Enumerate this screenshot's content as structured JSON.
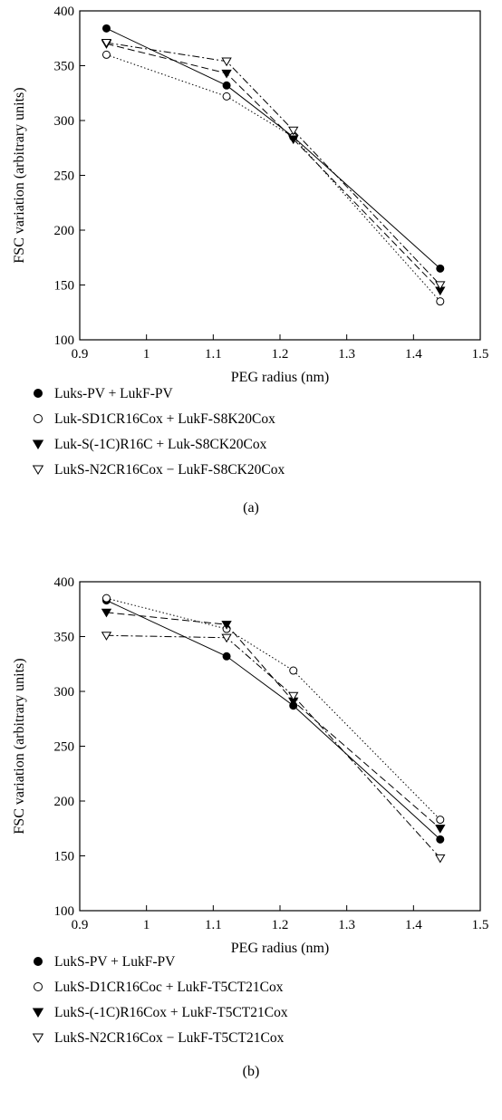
{
  "chart_data": [
    {
      "type": "line",
      "panel_label": "(a)",
      "xlabel": "PEG radius (nm)",
      "ylabel": "FSC variation (arbitrary units)",
      "xlim": [
        0.9,
        1.5
      ],
      "ylim": [
        100,
        400
      ],
      "xticks": [
        "0.9",
        "1",
        "1.1",
        "1.2",
        "1.3",
        "1.4",
        "1.5"
      ],
      "yticks": [
        "100",
        "150",
        "200",
        "250",
        "300",
        "350",
        "400"
      ],
      "x": [
        0.94,
        1.12,
        1.22,
        1.44
      ],
      "grid": false,
      "legend_position": "below",
      "series": [
        {
          "name": "Luks-PV + LukF-PV",
          "marker": "filled-circle",
          "line": "solid",
          "values": [
            384,
            332,
            285,
            165
          ]
        },
        {
          "name": "Luk-SD1CR16Cox + LukF-S8K20Cox",
          "marker": "open-circle",
          "line": "dotted",
          "values": [
            360,
            322,
            285,
            135
          ]
        },
        {
          "name": "Luk-S(-1C)R16C + Luk-S8CK20Cox",
          "marker": "filled-triangle-down",
          "line": "dashed",
          "values": [
            370,
            343,
            283,
            145
          ]
        },
        {
          "name": "LukS-N2CR16Cox − LukF-S8CK20Cox",
          "marker": "open-triangle-down",
          "line": "dash-dot",
          "values": [
            371,
            354,
            291,
            150
          ]
        }
      ]
    },
    {
      "type": "line",
      "panel_label": "(b)",
      "xlabel": "PEG radius (nm)",
      "ylabel": "FSC variation (arbitrary units)",
      "xlim": [
        0.9,
        1.5
      ],
      "ylim": [
        100,
        400
      ],
      "xticks": [
        "0.9",
        "1",
        "1.1",
        "1.2",
        "1.3",
        "1.4",
        "1.5"
      ],
      "yticks": [
        "100",
        "150",
        "200",
        "250",
        "300",
        "350",
        "400"
      ],
      "x": [
        0.94,
        1.12,
        1.22,
        1.44
      ],
      "grid": false,
      "legend_position": "below",
      "series": [
        {
          "name": "LukS-PV + LukF-PV",
          "marker": "filled-circle",
          "line": "solid",
          "values": [
            383,
            332,
            287,
            165
          ]
        },
        {
          "name": "LukS-D1CR16Coc + LukF-T5CT21Cox",
          "marker": "open-circle",
          "line": "dotted",
          "values": [
            385,
            357,
            319,
            183
          ]
        },
        {
          "name": "LukS-(-1C)R16Cox + LukF-T5CT21Cox",
          "marker": "filled-triangle-down",
          "line": "dashed",
          "values": [
            372,
            361,
            291,
            175
          ]
        },
        {
          "name": "LukS-N2CR16Cox − LukF-T5CT21Cox",
          "marker": "open-triangle-down",
          "line": "dash-dot",
          "values": [
            351,
            349,
            296,
            148
          ]
        }
      ]
    }
  ]
}
